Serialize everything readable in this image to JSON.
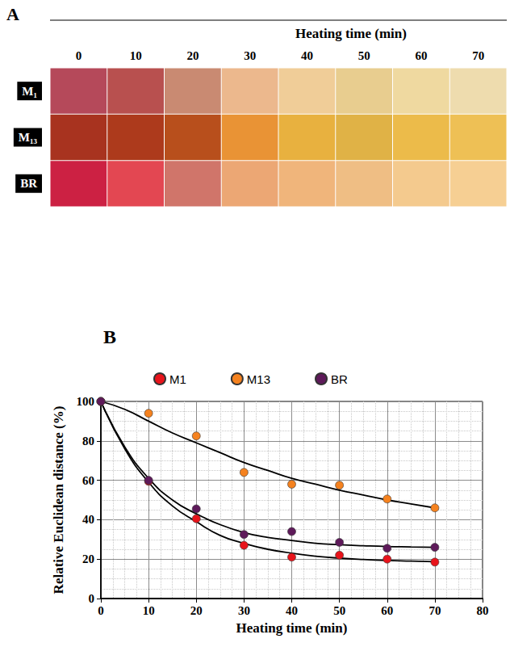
{
  "chart_data": [
    {
      "type": "swatch_grid",
      "title": "A",
      "x_label": "Heating time (min)",
      "categories": [
        "0",
        "10",
        "20",
        "30",
        "40",
        "50",
        "60",
        "70"
      ],
      "rows": [
        "M₁",
        "M₁₃",
        "BR"
      ],
      "colors": [
        [
          "#b5495a",
          "#b8504f",
          "#c98a72",
          "#ecb88d",
          "#f0cd98",
          "#e8cd8f",
          "#efd9a0",
          "#eedcae"
        ],
        [
          "#a8331f",
          "#ad3a1c",
          "#b84f1c",
          "#e99335",
          "#e8b13f",
          "#e0b246",
          "#ecbb4a",
          "#eec055"
        ],
        [
          "#cc2143",
          "#e34752",
          "#d0756a",
          "#eca774",
          "#f0b57b",
          "#efbe84",
          "#f4ca8e",
          "#f6cf93"
        ]
      ]
    },
    {
      "type": "scatter",
      "title": "B",
      "x_label": "Heating time (min)",
      "y_label": "Relative Euclidean distance (%)",
      "x": [
        0,
        10,
        20,
        30,
        40,
        50,
        60,
        70
      ],
      "fit_x": [
        0,
        5,
        10,
        15,
        20,
        25,
        30,
        35,
        40,
        45,
        50,
        55,
        60,
        65,
        70
      ],
      "series": [
        {
          "name": "M1",
          "color": "#e8141b",
          "marker": "circle",
          "values": [
            100,
            59.5,
            40.5,
            27,
            21,
            22,
            20,
            18.5
          ],
          "fit": [
            100,
            76,
            59,
            47,
            39,
            32,
            28,
            25,
            23,
            21.5,
            20.5,
            19.8,
            19.3,
            19,
            18.7
          ]
        },
        {
          "name": "M13",
          "color": "#f5821f",
          "marker": "circle",
          "values": [
            100,
            94,
            82.5,
            64,
            58,
            57.5,
            50.5,
            46
          ],
          "fit": [
            100,
            96,
            90,
            84,
            79,
            74,
            69,
            65,
            61,
            58,
            55,
            52.5,
            50,
            48,
            46
          ]
        },
        {
          "name": "BR",
          "color": "#5e1a5a",
          "marker": "circle",
          "values": [
            100,
            60,
            45.5,
            32.5,
            34,
            28.5,
            25.5,
            26
          ],
          "fit": [
            100,
            77,
            61,
            50,
            43,
            37.5,
            33.5,
            31,
            29.5,
            28,
            27.3,
            26.8,
            26.4,
            26.2,
            26
          ]
        }
      ],
      "xlim": [
        0,
        80
      ],
      "xticks": [
        0,
        10,
        20,
        30,
        40,
        50,
        60,
        70,
        80
      ],
      "ylim": [
        0,
        100
      ],
      "yticks": [
        0,
        20,
        40,
        60,
        80,
        100
      ],
      "grid": true,
      "legend": "top"
    }
  ]
}
